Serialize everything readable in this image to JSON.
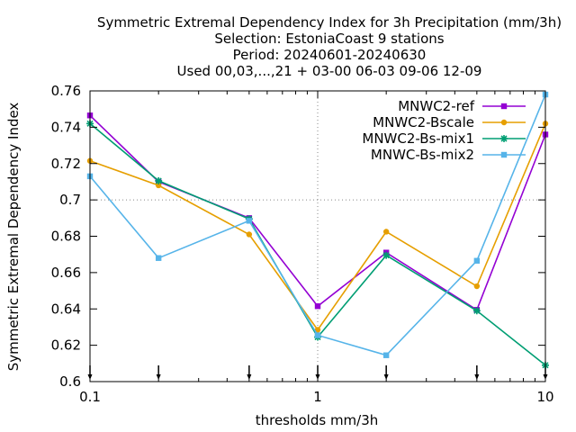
{
  "chart_data": {
    "type": "line",
    "title_lines": [
      "Symmetric Extremal Dependency Index  for 3h Precipitation (mm/3h)",
      "Selection: EstoniaCoast      9 stations",
      "Period: 20240601-20240630",
      "Used 00,03,...,21 + 03-00 06-03 09-06 12-09"
    ],
    "xlabel": "thresholds mm/3h",
    "ylabel": "Symmetric Extremal Dependency Index",
    "x_scale": "log",
    "xlim": [
      0.1,
      10
    ],
    "ylim": [
      0.6,
      0.76
    ],
    "x_ticks": [
      {
        "value": 0.1,
        "label": "0.1"
      },
      {
        "value": 1,
        "label": "1"
      },
      {
        "value": 10,
        "label": "10"
      }
    ],
    "y_ticks": [
      {
        "value": 0.6,
        "label": "0.6"
      },
      {
        "value": 0.62,
        "label": "0.62"
      },
      {
        "value": 0.64,
        "label": "0.64"
      },
      {
        "value": 0.66,
        "label": "0.66"
      },
      {
        "value": 0.68,
        "label": "0.68"
      },
      {
        "value": 0.7,
        "label": "0.7"
      },
      {
        "value": 0.72,
        "label": "0.72"
      },
      {
        "value": 0.74,
        "label": "0.74"
      },
      {
        "value": 0.76,
        "label": "0.76"
      }
    ],
    "x": [
      0.1,
      0.2,
      0.5,
      1,
      2,
      5,
      10
    ],
    "grid": "dotted vertical at 1, dotted horizontal at 0.7",
    "legend_position": "top-right",
    "series": [
      {
        "name": "MNWC2-ref",
        "color": "#9400d3",
        "marker": "square",
        "values": [
          0.7465,
          0.71,
          0.69,
          0.6415,
          0.671,
          0.6395,
          0.736
        ]
      },
      {
        "name": "MNWC2-Bscale",
        "color": "#e69f00",
        "marker": "circle",
        "values": [
          0.7215,
          0.708,
          0.681,
          0.6285,
          0.6825,
          0.6525,
          0.742
        ]
      },
      {
        "name": "MNWC2-Bs-mix1",
        "color": "#009e73",
        "marker": "star",
        "values": [
          0.742,
          0.7105,
          0.6895,
          0.6245,
          0.6695,
          0.639,
          0.609
        ]
      },
      {
        "name": "MNWC-Bs-mix2",
        "color": "#56b4e9",
        "marker": "square",
        "values": [
          0.713,
          0.668,
          0.6885,
          0.6255,
          0.6145,
          0.6665,
          0.758
        ]
      }
    ],
    "bottom_tick_marks_x": [
      0.1,
      0.2,
      0.5,
      1,
      2,
      5,
      10
    ]
  }
}
